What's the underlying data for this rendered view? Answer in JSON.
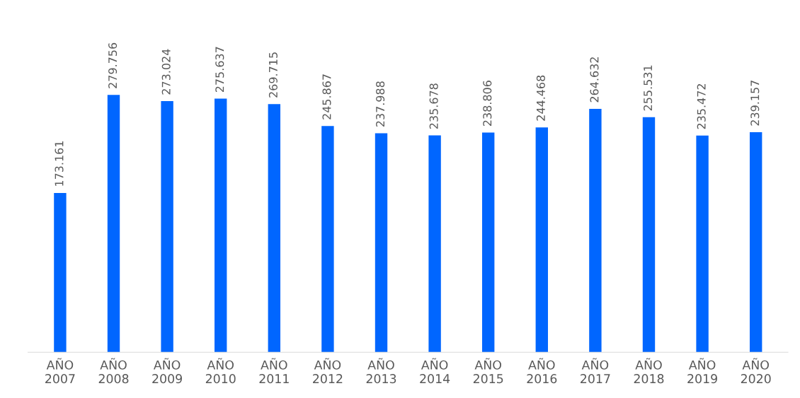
{
  "chart_data": {
    "type": "bar",
    "categories": [
      "AÑO\n2007",
      "AÑO\n2008",
      "AÑO\n2009",
      "AÑO\n2010",
      "AÑO\n2011",
      "AÑO\n2012",
      "AÑO\n2013",
      "AÑO\n2014",
      "AÑO\n2015",
      "AÑO\n2016",
      "AÑO\n2017",
      "AÑO\n2018",
      "AÑO\n2019",
      "AÑO\n2020"
    ],
    "values": [
      173161,
      279756,
      273024,
      275637,
      269715,
      245867,
      237988,
      235678,
      238806,
      244468,
      264632,
      255531,
      235472,
      239157
    ],
    "value_labels": [
      "173.161",
      "279.756",
      "273.024",
      "275.637",
      "269.715",
      "245.867",
      "237.988",
      "235.678",
      "238.806",
      "244.468",
      "264.632",
      "255.531",
      "235.472",
      "239.157"
    ],
    "color": "#0066ff",
    "grid": false,
    "legend": false
  }
}
